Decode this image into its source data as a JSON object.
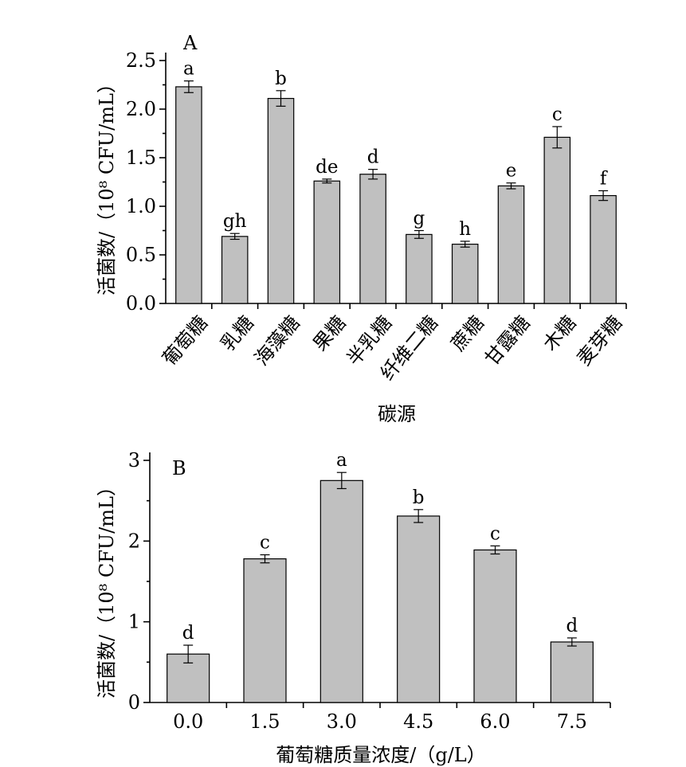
{
  "chart_data": [
    {
      "type": "bar",
      "panel_label": "A",
      "xlabel": "碳源",
      "ylabel": "活菌数/（10⁸ CFU/mL）",
      "ylim": [
        0,
        2.5
      ],
      "yticks": [
        "0.0",
        "0.5",
        "1.0",
        "1.5",
        "2.0",
        "2.5"
      ],
      "categories": [
        "葡萄糖",
        "乳糖",
        "海藻糖",
        "果糖",
        "半乳糖",
        "纤维二糖",
        "蔗糖",
        "甘露糖",
        "木糖",
        "麦芽糖"
      ],
      "values": [
        2.23,
        0.69,
        2.11,
        1.26,
        1.33,
        0.71,
        0.61,
        1.21,
        1.71,
        1.11
      ],
      "errors": [
        0.06,
        0.03,
        0.08,
        0.02,
        0.05,
        0.04,
        0.03,
        0.03,
        0.11,
        0.05
      ],
      "significance": [
        "a",
        "gh",
        "b",
        "de",
        "d",
        "g",
        "h",
        "e",
        "c",
        "f"
      ],
      "bar_color": "#c0c0c0"
    },
    {
      "type": "bar",
      "panel_label": "B",
      "xlabel": "葡萄糖质量浓度/（g/L）",
      "ylabel": "活菌数/（10⁸ CFU/mL）",
      "ylim": [
        0,
        3
      ],
      "yticks": [
        "0",
        "1",
        "2",
        "3"
      ],
      "categories": [
        "0.0",
        "1.5",
        "3.0",
        "4.5",
        "6.0",
        "7.5"
      ],
      "values": [
        0.6,
        1.78,
        2.75,
        2.31,
        1.89,
        0.75
      ],
      "errors": [
        0.11,
        0.05,
        0.1,
        0.08,
        0.05,
        0.05
      ],
      "significance": [
        "d",
        "c",
        "a",
        "b",
        "c",
        "d"
      ],
      "bar_color": "#c0c0c0"
    }
  ]
}
